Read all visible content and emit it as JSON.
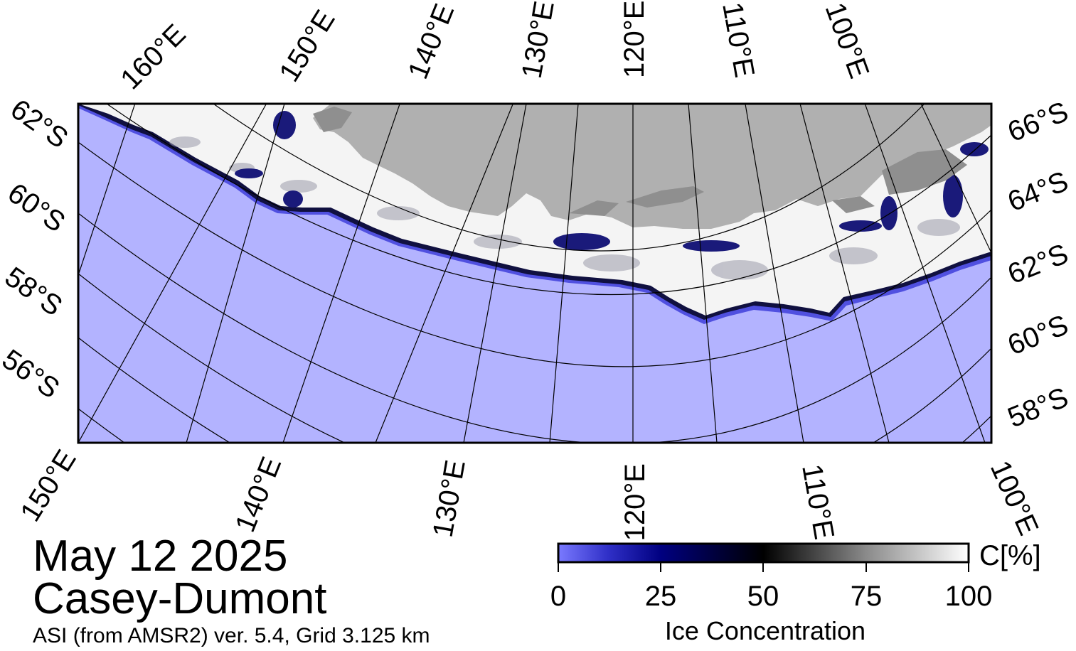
{
  "title": {
    "date": "May 12 2025",
    "region": "Casey-Dumont",
    "subtitle": "ASI (from AMSR2) ver. 5.4,  Grid 3.125 km"
  },
  "map": {
    "projection": "polar stereographic (south)",
    "longitude_labels_top": [
      "160°E",
      "150°E",
      "140°E",
      "130°E",
      "120°E",
      "110°E",
      "100°E"
    ],
    "longitude_labels_bottom": [
      "150°E",
      "140°E",
      "130°E",
      "120°E",
      "110°E",
      "100°E"
    ],
    "latitude_labels_left": [
      "62°S",
      "60°S",
      "58°S",
      "56°S"
    ],
    "latitude_labels_right": [
      "66°S",
      "64°S",
      "62°S",
      "60°S",
      "58°S"
    ],
    "colors": {
      "ocean": "#b3b3ff",
      "land": "#b0b0b0",
      "ice_high": "#ffffff",
      "ice_mid": "#000000",
      "ice_low": "#00006e",
      "graticule": "#000000"
    }
  },
  "colorbar": {
    "label": "Ice Concentration",
    "unit": "C[%]",
    "ticks": [
      "0",
      "25",
      "50",
      "75",
      "100"
    ],
    "range": [
      0,
      100
    ]
  }
}
